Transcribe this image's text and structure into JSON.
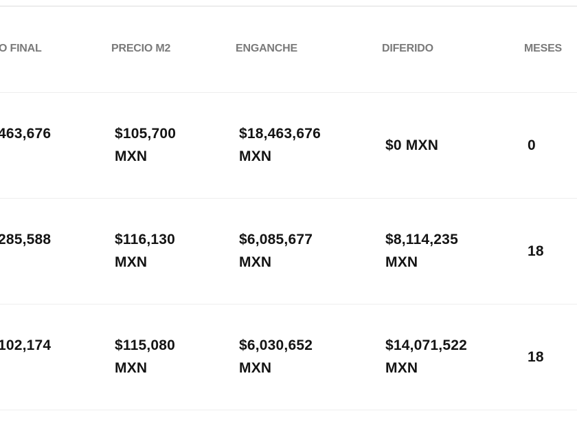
{
  "table": {
    "columns": [
      "O FINAL",
      "PRECIO M2",
      "ENGANCHE",
      "DIFERIDO",
      "MESES"
    ],
    "rows": [
      {
        "precio_final": "463,676",
        "precio_m2": "$105,700",
        "precio_m2_unit": "MXN",
        "enganche": "$18,463,676",
        "enganche_unit": "MXN",
        "diferido": "$0 MXN",
        "meses": "0"
      },
      {
        "precio_final": "285,588",
        "precio_m2": "$116,130",
        "precio_m2_unit": "MXN",
        "enganche": "$6,085,677",
        "enganche_unit": "MXN",
        "diferido": "$8,114,235",
        "diferido_unit": "MXN",
        "meses": "18"
      },
      {
        "precio_final": "102,174",
        "precio_m2": "$115,080",
        "precio_m2_unit": "MXN",
        "enganche": "$6,030,652",
        "enganche_unit": "MXN",
        "diferido": "$14,071,522",
        "diferido_unit": "MXN",
        "meses": "18"
      }
    ]
  }
}
